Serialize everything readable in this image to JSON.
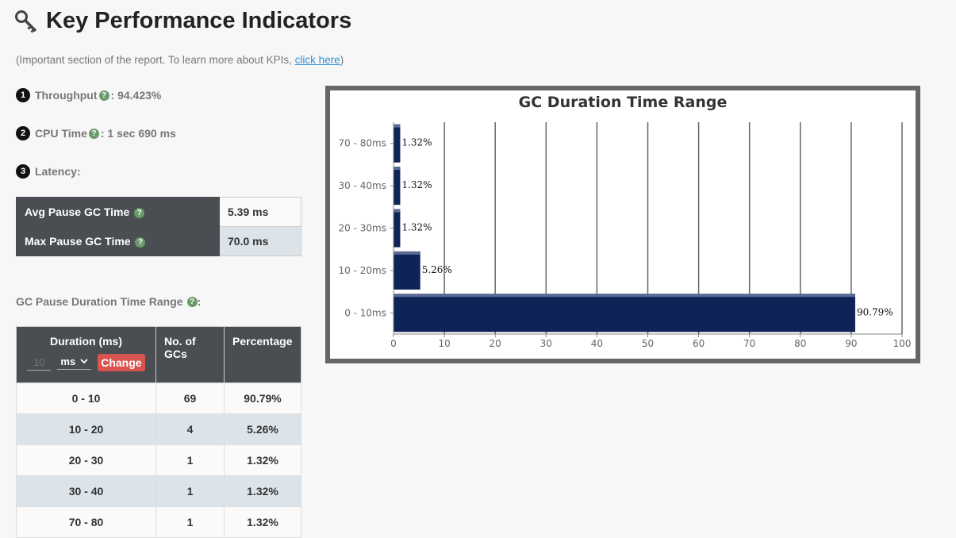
{
  "header": {
    "title": "Key Performance Indicators",
    "intro_text": "(Important section of the report. To learn more about KPIs, ",
    "intro_link": "click here",
    "intro_close": ")"
  },
  "kpis": [
    {
      "number": "1",
      "label": "Throughput",
      "value": ": 94.423%"
    },
    {
      "number": "2",
      "label": "CPU Time",
      "value": ": 1 sec 690 ms"
    },
    {
      "number": "3",
      "label": "Latency:"
    }
  ],
  "latency": [
    {
      "label": "Avg Pause GC Time",
      "value": "5.39 ms"
    },
    {
      "label": "Max Pause GC Time",
      "value": "70.0 ms"
    }
  ],
  "gc_range_label": "GC Pause Duration Time Range",
  "gc_table": {
    "headers": {
      "duration": "Duration (ms)",
      "count": "No. of GCs",
      "percentage": "Percentage"
    },
    "input_placeholder": "10",
    "unit_selected": "ms",
    "change_label": "Change",
    "rows": [
      {
        "range": "0 - 10",
        "count": "69",
        "pct": "90.79%"
      },
      {
        "range": "10 - 20",
        "count": "4",
        "pct": "5.26%"
      },
      {
        "range": "20 - 30",
        "count": "1",
        "pct": "1.32%"
      },
      {
        "range": "30 - 40",
        "count": "1",
        "pct": "1.32%"
      },
      {
        "range": "70 - 80",
        "count": "1",
        "pct": "1.32%"
      }
    ]
  },
  "chart_data": {
    "type": "bar",
    "orientation": "horizontal",
    "title": "GC Duration Time Range",
    "categories": [
      "70 - 80ms",
      "30 - 40ms",
      "20 - 30ms",
      "10 - 20ms",
      "0 - 10ms"
    ],
    "values": [
      1.32,
      1.32,
      1.32,
      5.26,
      90.79
    ],
    "labels": [
      "1.32%",
      "1.32%",
      "1.32%",
      "5.26%",
      "90.79%"
    ],
    "xlim": [
      0,
      100
    ],
    "xticks": [
      0,
      10,
      20,
      30,
      40,
      50,
      60,
      70,
      80,
      90,
      100
    ],
    "grid": true,
    "bar_color": "#0f2456"
  }
}
